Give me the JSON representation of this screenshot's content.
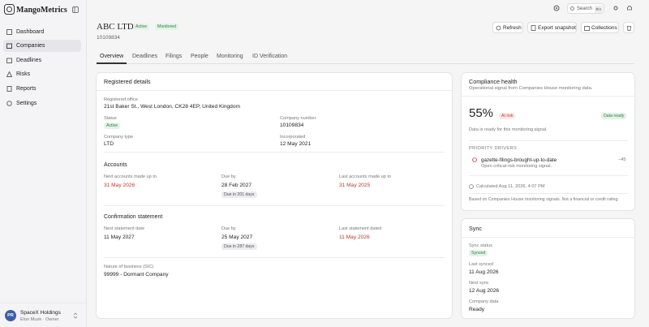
{
  "sidebar": {
    "brand": "MangoMetrics",
    "nav": [
      "Dashboard",
      "Companies",
      "Deadlines",
      "Risks",
      "Reports",
      "Settings"
    ],
    "user": {
      "initials": "PR",
      "name": "SpaceX Holdings",
      "role": "Elon Musk · Owner"
    }
  },
  "topbar": {
    "search": "Search",
    "shortcut": "⌘K"
  },
  "header": {
    "title": "ABC LTD",
    "badges": [
      "Active",
      "Monitored"
    ],
    "number": "10109834",
    "buttons": [
      "Refresh",
      "Export snapshot",
      "Collections"
    ]
  },
  "tabs": [
    "Overview",
    "Deadlines",
    "Filings",
    "People",
    "Monitoring",
    "ID Verification"
  ],
  "registered": {
    "title": "Registered details",
    "office": {
      "label": "Registered office",
      "value": "21st Baker St., West London, CK28 4EP, United Kingdom"
    },
    "status": {
      "label": "Status",
      "value": "Active"
    },
    "number": {
      "label": "Company number",
      "value": "10109834"
    },
    "type": {
      "label": "Company type",
      "value": "LTD"
    },
    "incorporated": {
      "label": "Incorporated",
      "value": "12 May 2021"
    },
    "accounts": {
      "title": "Accounts",
      "next": {
        "label": "Next accounts made up to",
        "value": "31 May 2026"
      },
      "due": {
        "label": "Due by",
        "value": "28 Feb 2027",
        "note": "Due in 201 days"
      },
      "last": {
        "label": "Last accounts made up to",
        "value": "31 May 2025"
      }
    },
    "confirmation": {
      "title": "Confirmation statement",
      "next": {
        "label": "Next statement date",
        "value": "11 May 2027"
      },
      "due": {
        "label": "Due by",
        "value": "25 May 2027",
        "note": "Due in 287 days"
      },
      "last": {
        "label": "Last statement dated",
        "value": "11 May 2026"
      }
    },
    "sic": {
      "label": "Nature of business (SIC)",
      "value": "99999 - Dormant Company"
    }
  },
  "compliance": {
    "title": "Compliance health",
    "subtitle": "Operational signal from Companies House monitoring data.",
    "score": "55%",
    "risk": "At risk",
    "status": "Data ready",
    "note": "Data is ready for this monitoring signal.",
    "drivers_title": "PRIORITY DRIVERS",
    "driver": {
      "name": "gazette-filings-brought-up-to-date",
      "desc": "Open critical-risk monitoring signal.",
      "impact": "−45"
    },
    "calculated": "Calculated Aug 11, 2026, 4:07 PM",
    "footer": "Based on Companies House monitoring signals. Not a financial or credit rating."
  },
  "sync": {
    "title": "Sync",
    "status": {
      "label": "Sync status",
      "value": "Synced"
    },
    "last": {
      "label": "Last synced",
      "value": "11 Aug 2026"
    },
    "next": {
      "label": "Next sync",
      "value": "12 Aug 2026"
    },
    "data": {
      "label": "Company data",
      "value": "Ready"
    }
  }
}
